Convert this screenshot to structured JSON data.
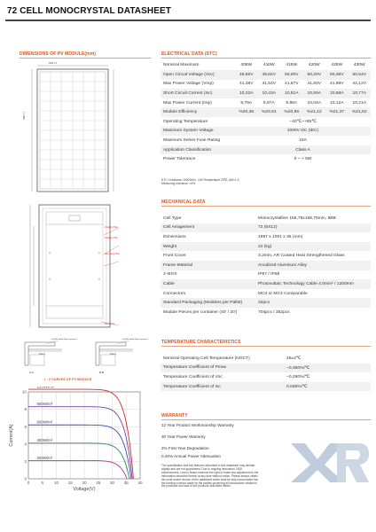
{
  "title": "72 CELL MONOCRYSTAL DATASHEET",
  "sections": {
    "dimensions": "DIMENSIONS OF PV MODULE(mm)",
    "electrical": "ELECTRICAL DATA (STC)",
    "mechanical": "MECHANICAL DATA",
    "temperature": "TEMPERATURE CHARACTERISTICS",
    "warranty": "WARRANTY",
    "iv_curves": "I - V CURVES OF PV MODULE"
  },
  "drawing_labels": {
    "installing_hole": "Installing Hole",
    "grounding_hole": "Grounding Hole",
    "drain_hole": "Drain Hole",
    "section_a": "A-A",
    "section_b": "B-B",
    "detail_a": "Double Sided Tape Laminate",
    "detail_b": "Double Sided Tape Laminate",
    "frame": "Frame",
    "width_dim": "1001 ± 1",
    "height_dim": "1987 ± 1"
  },
  "electrical": {
    "headers": [
      "",
      "405W",
      "410W",
      "415W",
      "420W",
      "425W",
      "430W"
    ],
    "rows": [
      {
        "label": "Nominal Maximum",
        "values": [
          "405W",
          "410W",
          "415W",
          "420W",
          "425W",
          "430W"
        ]
      },
      {
        "label": "Open Circuit Voltage (Voc)",
        "values": [
          "49,66V",
          "49,82V",
          "50,00V",
          "50,20V",
          "50,38V",
          "50,54V"
        ]
      },
      {
        "label": "Max Power Voltage (Vmp)",
        "values": [
          "41,38V",
          "41,52V",
          "41,67V",
          "41,83V",
          "41,98V",
          "42,12V"
        ]
      },
      {
        "label": "Short Circuit Current (Isc)",
        "values": [
          "10,32A",
          "10,43A",
          "10,51A",
          "10,59A",
          "10,68A",
          "10,77A"
        ]
      },
      {
        "label": "Max Power Current (Imp)",
        "values": [
          "9,79A",
          "9,87A",
          "9,96A",
          "10,04A",
          "10,12A",
          "10,21A"
        ]
      },
      {
        "label": "Module Efficiency",
        "values": [
          "%20,36",
          "%20,61",
          "%20,86",
          "%21,12",
          "%21,37",
          "%21,62"
        ]
      }
    ],
    "span_rows": [
      {
        "label": "Operating Temperature",
        "value": "−40℃~+85℃"
      },
      {
        "label": "Maximum System Voltage",
        "value": "1000V DC (IEC)"
      },
      {
        "label": "Maximum Series Fuse Rating",
        "value": "15A"
      },
      {
        "label": "Application Classification",
        "value": "Class A"
      },
      {
        "label": "Power Tolerance",
        "value": "0 ~ + 5W"
      }
    ],
    "note_line1": "STC: Irradiance 1000W/m², Cell Temperature 25℃, AM=1.5",
    "note_line2": "Measuring tolerance: ±3%"
  },
  "mechanical": [
    {
      "label": "Cell Type",
      "value": "Monocrystalline 158,75x158,75mm, 5BB"
    },
    {
      "label": "Cell Arragement",
      "value": "72 (6X12)"
    },
    {
      "label": "Dimensions",
      "value": "1987 x 1001 x 35 (mm)"
    },
    {
      "label": "Weight",
      "value": "22 (kg)"
    },
    {
      "label": "Front Cover",
      "value": "3,2mm, AR Coated Heat Strengthened Glass"
    },
    {
      "label": "Frame Material",
      "value": "Anodized Aluminum Alloy"
    },
    {
      "label": "J−BOX",
      "value": "IP67 / IP68"
    },
    {
      "label": "Cable",
      "value": "Photovoltaic Technology Cable 4,0mm² / 1200mm"
    },
    {
      "label": "Connectors",
      "value": "MC4 or MC4 Comparable"
    },
    {
      "label": "Standard Packaging (Modules per Pallet)",
      "value": "32pcs"
    },
    {
      "label": "Module Pieces per container (40' / 20')",
      "value": "704pcs / 352pcs"
    }
  ],
  "temperature": [
    {
      "label": "Nominal Operating Cell Temperature (NOCT)",
      "value": "45±2℃"
    },
    {
      "label": "Temperature Coefficient of Pmax",
      "value": "−0,350%/℃"
    },
    {
      "label": "Temperature Coefficient of Voc",
      "value": "−0,280%/℃"
    },
    {
      "label": "Temperature Coefficient of Isc",
      "value": "0,048%/℃"
    }
  ],
  "warranty": [
    "12 Year Product Workmanship Warranty",
    "30 Year Power Warranty",
    "2% First Year Degradation",
    "0,45% Annual Power Attenuation"
  ],
  "disclaimer": "The specification and key features described in this datasheet may deviate slightly and are not guaranteed. Due to ongoing innovation, R&D enhancement, Lexron Board reserves the right to make any adjustment to the information described herein at any time without notice. Please always obtain the most recent version of the datasheet which shall be duly incorporated into the binding contract made by the parties governing all transactions related to the purchase and sale of the products described herein.",
  "logo_text": "XR",
  "chart_data": {
    "type": "line",
    "title": "",
    "xlabel": "Voltage(V)",
    "ylabel": "Current(A)",
    "xlim": [
      0,
      40
    ],
    "ylim": [
      0,
      10
    ],
    "xticks": [
      "0",
      "5",
      "10",
      "15",
      "20",
      "25",
      "30",
      "35",
      "40"
    ],
    "yticks": [
      "0",
      "2",
      "4",
      "6",
      "8",
      "10"
    ],
    "grid": true,
    "series": [
      {
        "name": "1000W/m²",
        "color": "#d32a2a",
        "isc": 10.3,
        "voc": 37.6
      },
      {
        "name": "800W/m²",
        "color": "#7a3fa0",
        "isc": 8.3,
        "voc": 37.2
      },
      {
        "name": "600W/m²",
        "color": "#3d4fb0",
        "isc": 6.2,
        "voc": 36.8
      },
      {
        "name": "400W/m²",
        "color": "#2f8a4f",
        "isc": 4.1,
        "voc": 36.2
      },
      {
        "name": "200W/m²",
        "color": "#b23a8a",
        "isc": 2.1,
        "voc": 35.3
      }
    ]
  },
  "colors": {
    "accent": "#d9541f",
    "logo": "#b7c6d7"
  }
}
